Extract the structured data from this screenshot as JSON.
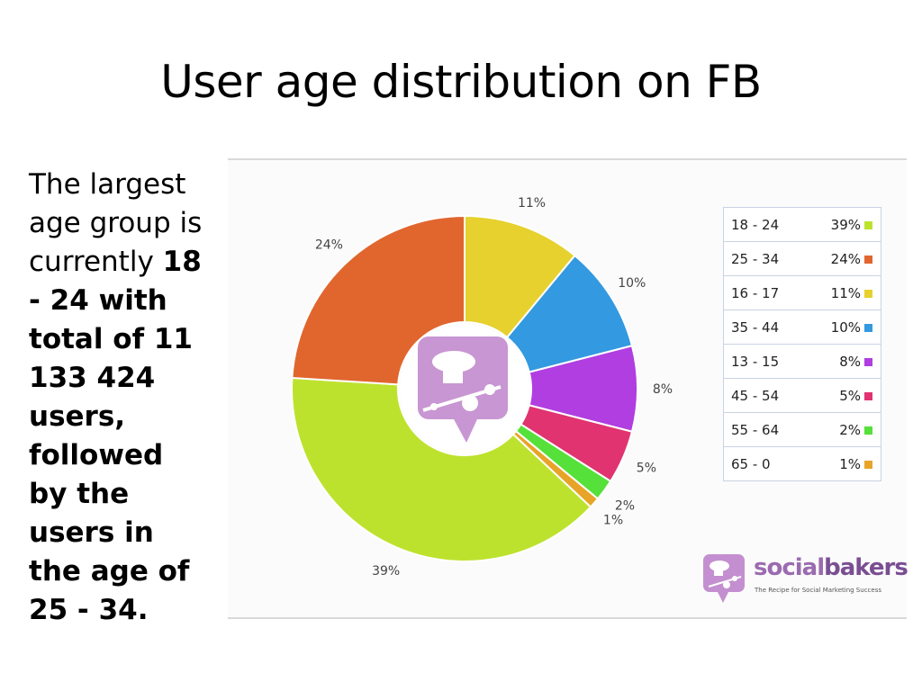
{
  "slide": {
    "title": "User age distribution on FB",
    "body_prefix": "The largest age group is currently ",
    "body_highlight": "18 - 24 with total of 11 133 424 users, followed by the users in the age of 25 - 34."
  },
  "brand": {
    "name_part1": "social",
    "name_part2": "bakers",
    "tagline": "The Recipe for Social Marketing Success"
  },
  "chart_data": {
    "type": "pie",
    "style": "donut",
    "start": "top",
    "direction": "clockwise",
    "legend_position": "right",
    "slices": [
      {
        "label": "16 - 17",
        "value": 11,
        "value_label": "11%",
        "color": "#e6d12e"
      },
      {
        "label": "35 - 44",
        "value": 10,
        "value_label": "10%",
        "color": "#3399e0"
      },
      {
        "label": "13 - 15",
        "value": 8,
        "value_label": "8%",
        "color": "#b03ee0"
      },
      {
        "label": "45 - 54",
        "value": 5,
        "value_label": "5%",
        "color": "#e0336f"
      },
      {
        "label": "55 - 64",
        "value": 2,
        "value_label": "2%",
        "color": "#55e03a"
      },
      {
        "label": "65 - 0",
        "value": 1,
        "value_label": "1%",
        "color": "#e8a428"
      },
      {
        "label": "18 - 24",
        "value": 39,
        "value_label": "39%",
        "color": "#bde22e"
      },
      {
        "label": "25 - 34",
        "value": 24,
        "value_label": "24%",
        "color": "#e0662e"
      }
    ],
    "legend": [
      {
        "label": "18 - 24",
        "value_label": "39%",
        "color": "#bde22e"
      },
      {
        "label": "25 - 34",
        "value_label": "24%",
        "color": "#e0662e"
      },
      {
        "label": "16 - 17",
        "value_label": "11%",
        "color": "#e6d12e"
      },
      {
        "label": "35 - 44",
        "value_label": "10%",
        "color": "#3399e0"
      },
      {
        "label": "13 - 15",
        "value_label": "8%",
        "color": "#b03ee0"
      },
      {
        "label": "45 - 54",
        "value_label": "5%",
        "color": "#e0336f"
      },
      {
        "label": "55 - 64",
        "value_label": "2%",
        "color": "#55e03a"
      },
      {
        "label": "65 - 0",
        "value_label": "1%",
        "color": "#e8a428"
      }
    ]
  }
}
